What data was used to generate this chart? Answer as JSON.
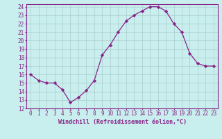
{
  "x": [
    0,
    1,
    2,
    3,
    4,
    5,
    6,
    7,
    8,
    9,
    10,
    11,
    12,
    13,
    14,
    15,
    16,
    17,
    18,
    19,
    20,
    21,
    22,
    23
  ],
  "y": [
    16,
    15.3,
    15,
    15,
    14.2,
    12.7,
    13.3,
    14.1,
    15.3,
    18.3,
    19.5,
    21.0,
    22.3,
    23.0,
    23.5,
    24.0,
    24.0,
    23.5,
    22.0,
    21.0,
    18.5,
    17.3,
    17.0,
    17.0
  ],
  "xlim": [
    -0.5,
    23.5
  ],
  "ylim": [
    12,
    24.3
  ],
  "yticks": [
    12,
    13,
    14,
    15,
    16,
    17,
    18,
    19,
    20,
    21,
    22,
    23,
    24
  ],
  "xticks": [
    0,
    1,
    2,
    3,
    4,
    5,
    6,
    7,
    8,
    9,
    10,
    11,
    12,
    13,
    14,
    15,
    16,
    17,
    18,
    19,
    20,
    21,
    22,
    23
  ],
  "xlabel": "Windchill (Refroidissement éolien,°C)",
  "line_color": "#882288",
  "marker": "D",
  "marker_size": 2.2,
  "bg_color": "#c8eeed",
  "grid_color": "#aacccc",
  "tick_label_fontsize": 5.5,
  "xlabel_fontsize": 6.0
}
